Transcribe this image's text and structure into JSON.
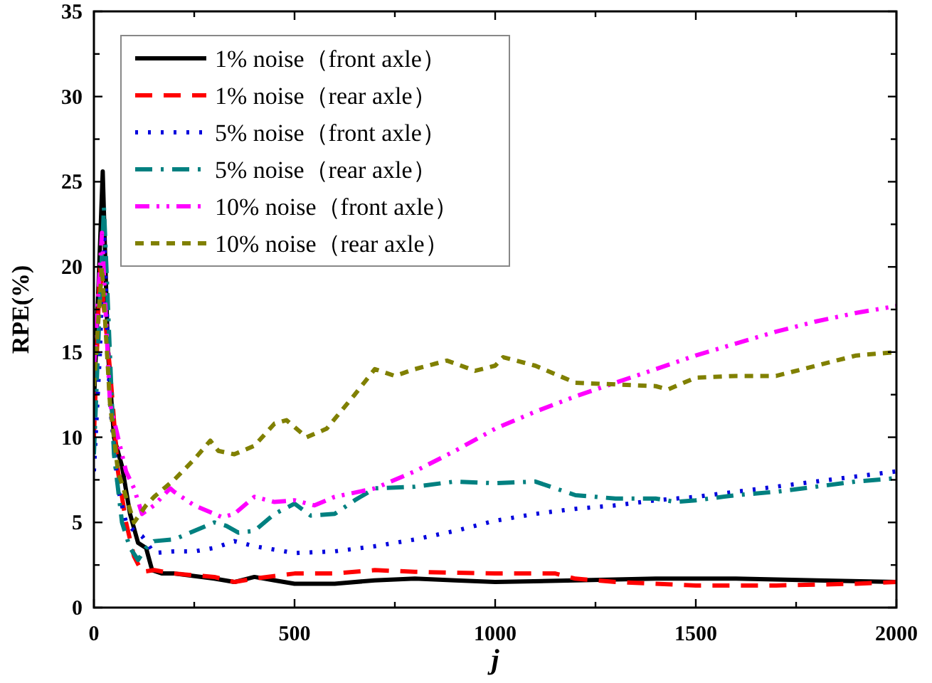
{
  "chart_data": {
    "type": "line",
    "xlabel": "j",
    "ylabel": "RPE(%)",
    "xlim": [
      0,
      2000
    ],
    "ylim": [
      0,
      35
    ],
    "xticks": [
      0,
      {
        "value": 250,
        "label": null
      },
      500,
      {
        "value": 750,
        "label": null
      },
      1000,
      {
        "value": 1250,
        "label": null
      },
      1500,
      {
        "value": 1750,
        "label": null
      },
      2000
    ],
    "yticks": [
      0,
      {
        "value": 2.5,
        "label": null
      },
      5,
      {
        "value": 7.5,
        "label": null
      },
      10,
      {
        "value": 12.5,
        "label": null
      },
      15,
      {
        "value": 17.5,
        "label": null
      },
      20,
      {
        "value": 22.5,
        "label": null
      },
      25,
      {
        "value": 27.5,
        "label": null
      },
      30,
      {
        "value": 32.5,
        "label": null
      },
      35
    ],
    "grid": false,
    "legend": "top left",
    "marker": "none",
    "series": [
      {
        "name": "1% noise（front axle）",
        "color": "#000000",
        "line_style": "solid",
        "x": [
          0,
          10,
          22,
          35,
          50,
          70,
          90,
          110,
          130,
          145,
          170,
          200,
          300,
          350,
          400,
          450,
          500,
          600,
          700,
          800,
          900,
          1000,
          1200,
          1400,
          1600,
          1800,
          2000
        ],
        "values": [
          12,
          18,
          25.6,
          15,
          10,
          8.3,
          5.5,
          3.8,
          3.5,
          2.2,
          2.0,
          2.0,
          1.7,
          1.5,
          1.8,
          1.6,
          1.4,
          1.4,
          1.6,
          1.7,
          1.6,
          1.5,
          1.6,
          1.7,
          1.7,
          1.6,
          1.5
        ]
      },
      {
        "name": "1% noise（rear axle）",
        "color": "#ff0000",
        "line_style": "dashed",
        "x": [
          0,
          15,
          40,
          60,
          80,
          100,
          120,
          150,
          200,
          300,
          350,
          400,
          500,
          600,
          700,
          800,
          1000,
          1150,
          1200,
          1300,
          1500,
          1700,
          1900,
          2000
        ],
        "values": [
          10,
          20,
          14,
          8,
          5,
          3,
          2.1,
          2.2,
          2.0,
          1.8,
          1.5,
          1.7,
          2.0,
          2.0,
          2.2,
          2.1,
          2.0,
          2.0,
          1.7,
          1.5,
          1.3,
          1.3,
          1.4,
          1.5
        ]
      },
      {
        "name": "5% noise（front axle）",
        "color": "#0000dd",
        "line_style": "dotted",
        "x": [
          0,
          15,
          25,
          40,
          60,
          80,
          100,
          120,
          150,
          200,
          250,
          300,
          350,
          400,
          450,
          500,
          600,
          700,
          800,
          900,
          1000,
          1100,
          1200,
          1300,
          1400,
          1500,
          1600,
          1700,
          1800,
          1900,
          2000
        ],
        "values": [
          8,
          15,
          22,
          12,
          7,
          5,
          4.5,
          4.2,
          3.2,
          3.3,
          3.3,
          3.5,
          3.9,
          3.6,
          3.4,
          3.2,
          3.3,
          3.6,
          4.0,
          4.5,
          5.1,
          5.5,
          5.8,
          6.0,
          6.3,
          6.5,
          6.8,
          7.1,
          7.4,
          7.7,
          8.0
        ]
      },
      {
        "name": "5% noise（rear axle）",
        "color": "#008080",
        "line_style": "dashdot",
        "x": [
          0,
          15,
          25,
          50,
          70,
          90,
          110,
          130,
          150,
          200,
          250,
          300,
          330,
          360,
          400,
          450,
          500,
          540,
          600,
          650,
          700,
          800,
          900,
          1000,
          1100,
          1200,
          1300,
          1400,
          1450,
          1500,
          1600,
          1700,
          1800,
          1900,
          2000
        ],
        "values": [
          9,
          18,
          23.5,
          9,
          5,
          3.5,
          2.8,
          3.5,
          3.9,
          4.0,
          4.5,
          5.0,
          4.8,
          4.4,
          4.5,
          5.5,
          6.1,
          5.4,
          5.5,
          6.3,
          7.0,
          7.1,
          7.4,
          7.3,
          7.4,
          6.6,
          6.4,
          6.4,
          6.2,
          6.3,
          6.6,
          6.8,
          7.1,
          7.4,
          7.6
        ]
      },
      {
        "name": "10% noise（front axle）",
        "color": "#ff00ff",
        "line_style": "dashdotdot",
        "x": [
          0,
          20,
          40,
          60,
          80,
          100,
          120,
          150,
          190,
          200,
          250,
          320,
          350,
          400,
          450,
          500,
          550,
          600,
          700,
          800,
          900,
          1000,
          1100,
          1200,
          1300,
          1400,
          1500,
          1600,
          1700,
          1800,
          1900,
          2000
        ],
        "values": [
          14,
          22,
          12,
          10,
          8,
          7,
          5.5,
          6.0,
          7.0,
          6.8,
          6.0,
          5.3,
          5.5,
          6.5,
          6.2,
          6.3,
          6.0,
          6.5,
          7.0,
          8.0,
          9.2,
          10.5,
          11.5,
          12.4,
          13.2,
          14.0,
          14.8,
          15.5,
          16.2,
          16.8,
          17.3,
          17.7
        ]
      },
      {
        "name": "10% noise（rear axle）",
        "color": "#808000",
        "line_style": "shortdash",
        "x": [
          0,
          20,
          40,
          60,
          80,
          100,
          130,
          150,
          200,
          250,
          290,
          310,
          350,
          400,
          450,
          480,
          530,
          580,
          650,
          700,
          750,
          800,
          880,
          950,
          1000,
          1020,
          1100,
          1200,
          1300,
          1400,
          1430,
          1500,
          1600,
          1700,
          1800,
          1900,
          2000
        ],
        "values": [
          13,
          20,
          12,
          8,
          6.5,
          5.0,
          6,
          6.5,
          7.5,
          8.7,
          9.8,
          9.2,
          9.0,
          9.5,
          10.8,
          11.0,
          10.0,
          10.5,
          12.5,
          14.0,
          13.6,
          14.0,
          14.5,
          13.9,
          14.2,
          14.7,
          14.2,
          13.2,
          13.1,
          13.0,
          12.8,
          13.5,
          13.6,
          13.6,
          14.2,
          14.8,
          15.0
        ]
      }
    ]
  }
}
